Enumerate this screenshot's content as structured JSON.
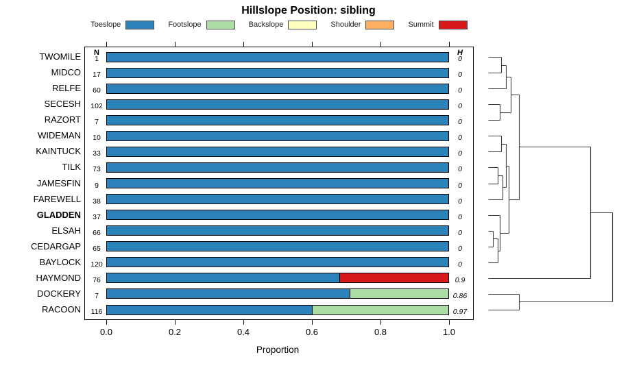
{
  "title": "Hillslope Position: sibling",
  "x_axis": {
    "label": "Proportion",
    "ticks": [
      "0.0",
      "0.2",
      "0.4",
      "0.6",
      "0.8",
      "1.0"
    ],
    "tick_values": [
      0.0,
      0.2,
      0.4,
      0.6,
      0.8,
      1.0
    ]
  },
  "columns": {
    "n_header": "N",
    "h_header": "H"
  },
  "legend": [
    {
      "label": "Toeslope",
      "color": "#2B83BA"
    },
    {
      "label": "Footslope",
      "color": "#ABDDA4"
    },
    {
      "label": "Backslope",
      "color": "#FFFFBF"
    },
    {
      "label": "Shoulder",
      "color": "#FDAE61"
    },
    {
      "label": "Summit",
      "color": "#D7191C"
    }
  ],
  "chart_data": {
    "type": "bar",
    "orientation": "horizontal",
    "stacked": true,
    "title": "Hillslope Position: sibling",
    "xlabel": "Proportion",
    "xlim": [
      0,
      1
    ],
    "grid": false,
    "categories": [
      "Toeslope",
      "Footslope",
      "Backslope",
      "Shoulder",
      "Summit"
    ],
    "rows": [
      {
        "site": "TWOMILE",
        "n": 1,
        "h": "0",
        "bold": false,
        "segments": [
          {
            "position": "Toeslope",
            "value": 1.0
          }
        ]
      },
      {
        "site": "MIDCO",
        "n": 17,
        "h": "0",
        "bold": false,
        "segments": [
          {
            "position": "Toeslope",
            "value": 1.0
          }
        ]
      },
      {
        "site": "RELFE",
        "n": 60,
        "h": "0",
        "bold": false,
        "segments": [
          {
            "position": "Toeslope",
            "value": 1.0
          }
        ]
      },
      {
        "site": "SECESH",
        "n": 102,
        "h": "0",
        "bold": false,
        "segments": [
          {
            "position": "Toeslope",
            "value": 1.0
          }
        ]
      },
      {
        "site": "RAZORT",
        "n": 7,
        "h": "0",
        "bold": false,
        "segments": [
          {
            "position": "Toeslope",
            "value": 1.0
          }
        ]
      },
      {
        "site": "WIDEMAN",
        "n": 10,
        "h": "0",
        "bold": false,
        "segments": [
          {
            "position": "Toeslope",
            "value": 1.0
          }
        ]
      },
      {
        "site": "KAINTUCK",
        "n": 33,
        "h": "0",
        "bold": false,
        "segments": [
          {
            "position": "Toeslope",
            "value": 1.0
          }
        ]
      },
      {
        "site": "TILK",
        "n": 73,
        "h": "0",
        "bold": false,
        "segments": [
          {
            "position": "Toeslope",
            "value": 1.0
          }
        ]
      },
      {
        "site": "JAMESFIN",
        "n": 9,
        "h": "0",
        "bold": false,
        "segments": [
          {
            "position": "Toeslope",
            "value": 1.0
          }
        ]
      },
      {
        "site": "FAREWELL",
        "n": 38,
        "h": "0",
        "bold": false,
        "segments": [
          {
            "position": "Toeslope",
            "value": 1.0
          }
        ]
      },
      {
        "site": "GLADDEN",
        "n": 37,
        "h": "0",
        "bold": true,
        "segments": [
          {
            "position": "Toeslope",
            "value": 1.0
          }
        ]
      },
      {
        "site": "ELSAH",
        "n": 66,
        "h": "0",
        "bold": false,
        "segments": [
          {
            "position": "Toeslope",
            "value": 1.0
          }
        ]
      },
      {
        "site": "CEDARGAP",
        "n": 65,
        "h": "0",
        "bold": false,
        "segments": [
          {
            "position": "Toeslope",
            "value": 1.0
          }
        ]
      },
      {
        "site": "BAYLOCK",
        "n": 120,
        "h": "0",
        "bold": false,
        "segments": [
          {
            "position": "Toeslope",
            "value": 1.0
          }
        ]
      },
      {
        "site": "HAYMOND",
        "n": 76,
        "h": "0.9",
        "bold": false,
        "segments": [
          {
            "position": "Toeslope",
            "value": 0.68
          },
          {
            "position": "Summit",
            "value": 0.32
          }
        ]
      },
      {
        "site": "DOCKERY",
        "n": 7,
        "h": "0.86",
        "bold": false,
        "segments": [
          {
            "position": "Toeslope",
            "value": 0.71
          },
          {
            "position": "Footslope",
            "value": 0.29
          }
        ]
      },
      {
        "site": "RACOON",
        "n": 116,
        "h": "0.97",
        "bold": false,
        "segments": [
          {
            "position": "Toeslope",
            "value": 0.6
          },
          {
            "position": "Footslope",
            "value": 0.4
          }
        ]
      }
    ],
    "dendrogram": {
      "orientation": "right",
      "heights_normalized": true,
      "tree": {
        "h": 1.0,
        "children": [
          {
            "h": 0.822,
            "children": [
              {
                "h": 0.247,
                "children": [
                  {
                    "h": 0.182,
                    "children": [
                      {
                        "h": 0.142,
                        "children": [
                          {
                            "h": 0.105,
                            "children": [
                              {
                                "leaf": "TWOMILE"
                              },
                              {
                                "leaf": "MIDCO"
                              }
                            ]
                          },
                          {
                            "leaf": "RELFE"
                          }
                        ]
                      },
                      {
                        "h": 0.096,
                        "children": [
                          {
                            "leaf": "SECESH"
                          },
                          {
                            "leaf": "RAZORT"
                          }
                        ]
                      }
                    ]
                  },
                  {
                    "h": 0.164,
                    "children": [
                      {
                        "h": 0.142,
                        "children": [
                          {
                            "h": 0.103,
                            "children": [
                              {
                                "leaf": "WIDEMAN"
                              },
                              {
                                "leaf": "KAINTUCK"
                              }
                            ]
                          },
                          {
                            "h": 0.114,
                            "children": [
                              {
                                "h": 0.077,
                                "children": [
                                  {
                                    "leaf": "TILK"
                                  },
                                  {
                                    "leaf": "JAMESFIN"
                                  }
                                ]
                              },
                              {
                                "leaf": "FAREWELL"
                              }
                            ]
                          }
                        ]
                      },
                      {
                        "h": 0.096,
                        "children": [
                          {
                            "leaf": "GLADDEN"
                          },
                          {
                            "h": 0.077,
                            "children": [
                              {
                                "h": 0.04,
                                "children": [
                                  {
                                    "leaf": "ELSAH"
                                  },
                                  {
                                    "leaf": "CEDARGAP"
                                  }
                                ]
                              },
                              {
                                "leaf": "BAYLOCK"
                              }
                            ]
                          }
                        ]
                      }
                    ]
                  }
                ]
              },
              {
                "leaf": "HAYMOND"
              }
            ]
          },
          {
            "h": 0.25,
            "children": [
              {
                "leaf": "DOCKERY"
              },
              {
                "leaf": "RACOON"
              }
            ]
          }
        ]
      }
    }
  }
}
